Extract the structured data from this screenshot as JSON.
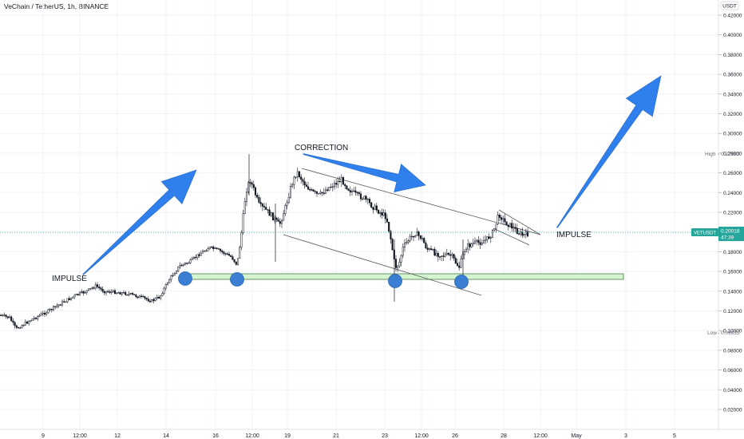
{
  "header": {
    "symbol_title": "VeChain / TetherUS, 1h, BINANCE"
  },
  "colors": {
    "up_candle": "#131722",
    "down_candle": "#131722",
    "arrow": "#2f80ed",
    "support_zone_fill": "#d4f5d0",
    "support_zone_stroke": "#4a7a4a",
    "touch_circle": "#3b7fd4",
    "last_price_badge": "#26a69a",
    "price_line": "#26a69a",
    "grid": "#f0f3fa",
    "channel_line": "#555555"
  },
  "axis": {
    "currency_label": "USDT",
    "high_label": "High",
    "low_label": "Low"
  },
  "annotations": {
    "impulse_left": "IMPULSE",
    "correction": "CORRECTION",
    "impulse_right": "IMPULSE"
  },
  "last_price": {
    "symbol": "VETUSDT",
    "price": "0.20018",
    "countdown": "47:39"
  },
  "chart_data": {
    "type": "candlestick",
    "title": "VeChain / TetherUS, 1h, BINANCE",
    "ylabel": "USDT",
    "y_scale": "linear",
    "ylim": [
      0.005,
      0.425
    ],
    "y_ticks": [
      "0.42000",
      "0.40000",
      "0.38000",
      "0.36000",
      "0.34000",
      "0.32000",
      "0.30000",
      "0.28000",
      "0.26000",
      "0.24000",
      "0.22000",
      "0.20000",
      "0.18000",
      "0.16000",
      "0.14000",
      "0.12000",
      "0.10000",
      "0.08000",
      "0.06000",
      "0.04000",
      "0.02000"
    ],
    "x_ticks": [
      "9",
      "12:00",
      "12",
      "14",
      "16",
      "12:00",
      "19",
      "21",
      "23",
      "12:00",
      "26",
      "28",
      "12:00",
      "May",
      "3",
      "5"
    ],
    "high": {
      "label": "High",
      "value": "0.27983"
    },
    "low": {
      "label": "Low",
      "value": "0.09835"
    },
    "last_price": 0.20018,
    "support_zone": [
      0.153,
      0.158
    ],
    "path_points": [
      {
        "x": "Apr 7 00:00",
        "y": 0.115
      },
      {
        "x": "Apr 8 00:00",
        "y": 0.105
      },
      {
        "x": "Apr 9 00:00",
        "y": 0.112
      },
      {
        "x": "Apr 10 12:00",
        "y": 0.14
      },
      {
        "x": "Apr 11 00:00",
        "y": 0.145
      },
      {
        "x": "Apr 12 00:00",
        "y": 0.138
      },
      {
        "x": "Apr 13 00:00",
        "y": 0.128
      },
      {
        "x": "Apr 14 00:00",
        "y": 0.14
      },
      {
        "x": "Apr 15 00:00",
        "y": 0.172
      },
      {
        "x": "Apr 16 00:00",
        "y": 0.19
      },
      {
        "x": "Apr 17 00:00",
        "y": 0.185
      },
      {
        "x": "Apr 17 12:00",
        "y": 0.23
      },
      {
        "x": "Apr 18 00:00",
        "y": 0.222
      },
      {
        "x": "Apr 19 00:00",
        "y": 0.247
      },
      {
        "x": "Apr 20 00:00",
        "y": 0.235
      },
      {
        "x": "Apr 21 00:00",
        "y": 0.245
      },
      {
        "x": "Apr 22 00:00",
        "y": 0.228
      },
      {
        "x": "Apr 22 18:00",
        "y": 0.215
      },
      {
        "x": "Apr 23 06:00",
        "y": 0.165
      },
      {
        "x": "Apr 24 00:00",
        "y": 0.195
      },
      {
        "x": "Apr 25 00:00",
        "y": 0.18
      },
      {
        "x": "Apr 26 00:00",
        "y": 0.165
      },
      {
        "x": "Apr 27 00:00",
        "y": 0.192
      },
      {
        "x": "Apr 28 00:00",
        "y": 0.218
      },
      {
        "x": "Apr 28 12:00",
        "y": 0.198
      },
      {
        "x": "Apr 29 00:00",
        "y": 0.2
      }
    ]
  }
}
